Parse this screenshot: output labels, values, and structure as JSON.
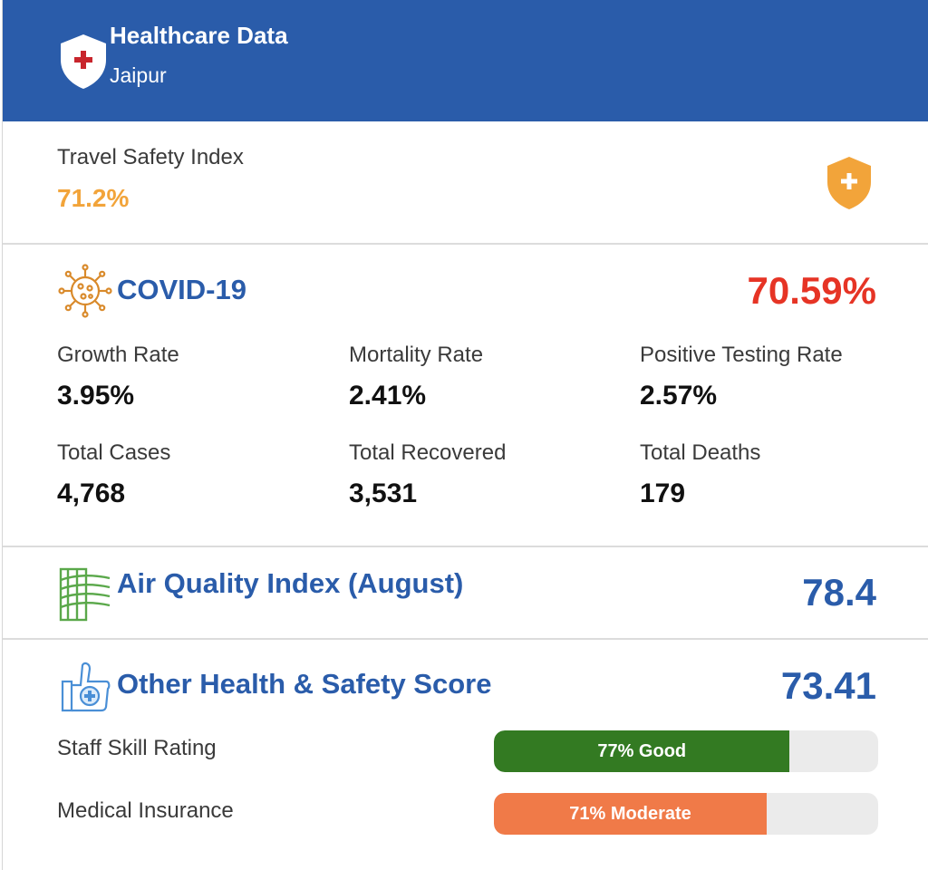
{
  "header": {
    "title": "Healthcare Data",
    "city": "Jaipur",
    "icon": "shield-plus-icon",
    "background": "#2a5caa"
  },
  "travel_safety": {
    "label": "Travel Safety Index",
    "value": "71.2%",
    "icon": "shield-plus-icon",
    "color": "#f2a43a"
  },
  "covid": {
    "title": "COVID-19",
    "score": "70.59%",
    "icon": "virus-icon",
    "score_color": "#e63425",
    "stats": [
      {
        "label": "Growth Rate",
        "value": "3.95%"
      },
      {
        "label": "Mortality Rate",
        "value": "2.41%"
      },
      {
        "label": "Positive Testing Rate",
        "value": "2.57%"
      },
      {
        "label": "Total Cases",
        "value": "4,768"
      },
      {
        "label": "Total Recovered",
        "value": "3,531"
      },
      {
        "label": "Total Deaths",
        "value": "179"
      }
    ]
  },
  "air_quality": {
    "title": "Air Quality Index (August)",
    "score": "78.4",
    "icon": "wind-building-icon"
  },
  "other_health": {
    "title": "Other Health & Safety Score",
    "score": "73.41",
    "icon": "thumbs-up-medical-icon",
    "ratings": [
      {
        "label": "Staff Skill Rating",
        "bar_text": "77% Good",
        "percent": 77,
        "color": "#337a22"
      },
      {
        "label": "Medical Insurance",
        "bar_text": "71% Moderate",
        "percent": 71,
        "color": "#f07a48"
      }
    ]
  }
}
